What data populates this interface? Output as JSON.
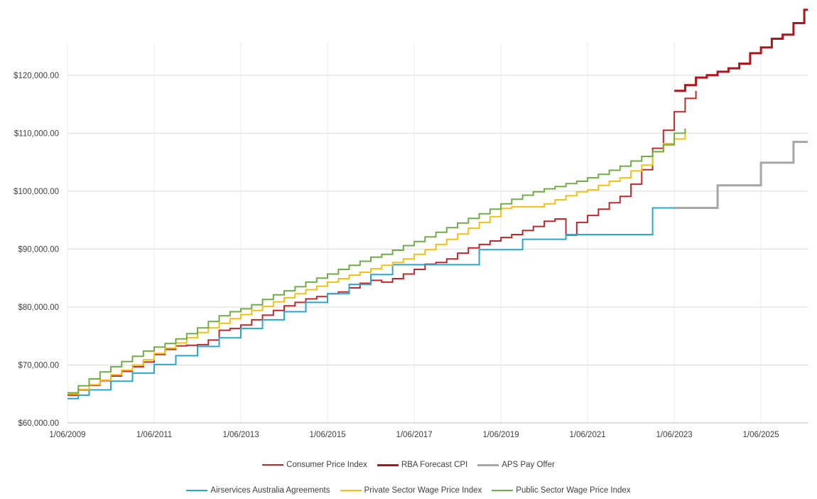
{
  "chart_data": {
    "type": "line",
    "step": true,
    "grid": true,
    "legend_position": "bottom",
    "title": "",
    "xlabel": "",
    "ylabel": "",
    "x_tick_labels": [
      "1/06/2009",
      "1/06/2011",
      "1/06/2013",
      "1/06/2015",
      "1/06/2017",
      "1/06/2019",
      "1/06/2021",
      "1/06/2023",
      "1/06/2025"
    ],
    "x_ticks": [
      2009.42,
      2011.42,
      2013.42,
      2015.42,
      2017.42,
      2019.42,
      2021.42,
      2023.42,
      2025.42
    ],
    "xlim": [
      2009.42,
      2026.5
    ],
    "y_tick_labels": [
      "$60,000.00",
      "$70,000.00",
      "$80,000.00",
      "$90,000.00",
      "$100,000.00",
      "$110,000.00",
      "$120,000.00"
    ],
    "y_ticks": [
      60000,
      70000,
      80000,
      90000,
      100000,
      110000,
      120000
    ],
    "ylim": [
      60000,
      132000
    ],
    "series": [
      {
        "name": "Consumer Price Index",
        "color": "#c0282d",
        "width": 2,
        "x": [
          2009.42,
          2009.67,
          2009.92,
          2010.17,
          2010.42,
          2010.67,
          2010.92,
          2011.17,
          2011.42,
          2011.67,
          2011.92,
          2012.17,
          2012.42,
          2012.67,
          2012.92,
          2013.17,
          2013.42,
          2013.67,
          2013.92,
          2014.17,
          2014.42,
          2014.67,
          2014.92,
          2015.17,
          2015.42,
          2015.67,
          2015.92,
          2016.17,
          2016.42,
          2016.67,
          2016.92,
          2017.17,
          2017.42,
          2017.67,
          2017.92,
          2018.17,
          2018.42,
          2018.67,
          2018.92,
          2019.17,
          2019.42,
          2019.67,
          2019.92,
          2020.17,
          2020.42,
          2020.67,
          2020.92,
          2021.17,
          2021.42,
          2021.67,
          2021.92,
          2022.17,
          2022.42,
          2022.67,
          2022.92,
          2023.17,
          2023.42,
          2023.67,
          2023.92
        ],
        "values": [
          64800,
          65700,
          66500,
          67300,
          68100,
          68900,
          69700,
          70500,
          71800,
          72700,
          73300,
          73400,
          73500,
          74300,
          76000,
          76300,
          76900,
          77800,
          78600,
          79400,
          80200,
          80800,
          81400,
          81800,
          82300,
          82600,
          83300,
          84100,
          84600,
          84300,
          84900,
          85700,
          86500,
          87400,
          87700,
          88300,
          89300,
          90200,
          90800,
          91400,
          92000,
          92500,
          93200,
          93900,
          94800,
          95200,
          92400,
          94600,
          95800,
          96900,
          98000,
          99100,
          101200,
          103700,
          107400,
          110500,
          113700,
          116000,
          117300
        ]
      },
      {
        "name": "RBA Forecast CPI",
        "color": "#b0151b",
        "width": 3,
        "x": [
          2023.42,
          2023.67,
          2023.92,
          2024.17,
          2024.42,
          2024.67,
          2024.92,
          2025.17,
          2025.42,
          2025.67,
          2025.92,
          2026.17,
          2026.42,
          2026.5
        ],
        "values": [
          117300,
          118300,
          119600,
          120000,
          120600,
          121200,
          122000,
          123800,
          124800,
          126300,
          127000,
          129000,
          131300,
          131300
        ]
      },
      {
        "name": "APS Pay Offer",
        "color": "#a6a6a6",
        "width": 3,
        "x": [
          2023.42,
          2023.92,
          2024.42,
          2024.92,
          2025.42,
          2025.92,
          2026.17,
          2026.5
        ],
        "values": [
          97100,
          97100,
          101000,
          101000,
          104900,
          104900,
          108500,
          108500
        ]
      },
      {
        "name": "Airservices Australia Agreements",
        "color": "#2aa7cc",
        "width": 2,
        "x": [
          2009.42,
          2009.67,
          2009.92,
          2010.42,
          2010.92,
          2011.42,
          2011.92,
          2012.42,
          2012.92,
          2013.42,
          2013.92,
          2014.42,
          2014.92,
          2015.42,
          2015.92,
          2016.42,
          2016.92,
          2017.42,
          2018.92,
          2019.42,
          2019.92,
          2020.42,
          2020.92,
          2021.42,
          2022.92,
          2023.42
        ],
        "values": [
          64200,
          64800,
          65700,
          67200,
          68600,
          70100,
          71600,
          73200,
          74700,
          76300,
          77800,
          79200,
          80800,
          82300,
          83900,
          85600,
          87300,
          87300,
          89900,
          89900,
          91700,
          91700,
          92500,
          92500,
          97100,
          97100
        ]
      },
      {
        "name": "Private Sector Wage Price Index",
        "color": "#f2c113",
        "width": 2,
        "x": [
          2009.42,
          2009.67,
          2009.92,
          2010.17,
          2010.42,
          2010.67,
          2010.92,
          2011.17,
          2011.42,
          2011.67,
          2011.92,
          2012.17,
          2012.42,
          2012.67,
          2012.92,
          2013.17,
          2013.42,
          2013.67,
          2013.92,
          2014.17,
          2014.42,
          2014.67,
          2014.92,
          2015.17,
          2015.42,
          2015.67,
          2015.92,
          2016.17,
          2016.42,
          2016.67,
          2016.92,
          2017.17,
          2017.42,
          2017.67,
          2017.92,
          2018.17,
          2018.42,
          2018.67,
          2018.92,
          2019.17,
          2019.42,
          2019.67,
          2019.92,
          2020.17,
          2020.42,
          2020.67,
          2020.92,
          2021.17,
          2021.42,
          2021.67,
          2021.92,
          2022.17,
          2022.42,
          2022.67,
          2022.92,
          2023.17,
          2023.42,
          2023.67
        ],
        "values": [
          65000,
          65800,
          66600,
          67400,
          68300,
          69100,
          70000,
          70900,
          72000,
          72900,
          73800,
          74700,
          75600,
          76400,
          77200,
          78000,
          78700,
          79400,
          80100,
          80900,
          81600,
          82300,
          83000,
          83600,
          84300,
          84900,
          85500,
          86000,
          86600,
          87200,
          87700,
          88300,
          89100,
          89900,
          90800,
          91700,
          92600,
          93600,
          94600,
          95600,
          97000,
          97300,
          97300,
          97300,
          97800,
          98500,
          99200,
          99900,
          100200,
          101000,
          101700,
          102300,
          103500,
          104500,
          106800,
          108200,
          109000,
          109900
        ]
      },
      {
        "name": "Public Sector Wage Price Index",
        "color": "#70ad47",
        "width": 2,
        "x": [
          2009.42,
          2009.67,
          2009.92,
          2010.17,
          2010.42,
          2010.67,
          2010.92,
          2011.17,
          2011.42,
          2011.67,
          2011.92,
          2012.17,
          2012.42,
          2012.67,
          2012.92,
          2013.17,
          2013.42,
          2013.67,
          2013.92,
          2014.17,
          2014.42,
          2014.67,
          2014.92,
          2015.17,
          2015.42,
          2015.67,
          2015.92,
          2016.17,
          2016.42,
          2016.67,
          2016.92,
          2017.17,
          2017.42,
          2017.67,
          2017.92,
          2018.17,
          2018.42,
          2018.67,
          2018.92,
          2019.17,
          2019.42,
          2019.67,
          2019.92,
          2020.17,
          2020.42,
          2020.67,
          2020.92,
          2021.17,
          2021.42,
          2021.67,
          2021.92,
          2022.17,
          2022.42,
          2022.67,
          2022.92,
          2023.17,
          2023.42,
          2023.67
        ],
        "values": [
          65200,
          66400,
          67600,
          68800,
          69700,
          70600,
          71500,
          72400,
          73100,
          73700,
          74500,
          75400,
          76400,
          77500,
          78500,
          79200,
          79700,
          80400,
          81300,
          82100,
          82800,
          83500,
          84300,
          85000,
          85700,
          86500,
          87200,
          87900,
          88600,
          89100,
          89800,
          90600,
          91300,
          92100,
          92900,
          93700,
          94500,
          95300,
          96100,
          96900,
          97800,
          98600,
          99300,
          99900,
          100400,
          100800,
          101300,
          101700,
          102300,
          102900,
          103600,
          104300,
          105200,
          106000,
          106800,
          108000,
          110000,
          110800
        ]
      }
    ],
    "legend_rows": [
      [
        "Consumer Price Index",
        "RBA Forecast CPI",
        "APS Pay Offer"
      ],
      [
        "Airservices Australia Agreements",
        "Private Sector Wage Price Index",
        "Public Sector Wage Price Index"
      ]
    ]
  }
}
